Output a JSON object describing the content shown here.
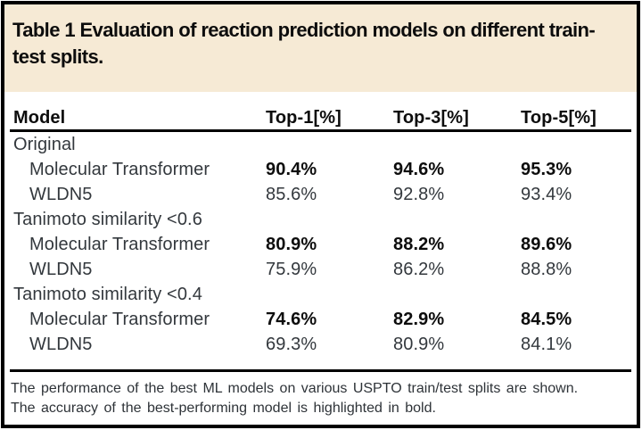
{
  "table": {
    "title": "Table 1 Evaluation of reaction prediction models on different train-test splits.",
    "columns": [
      "Model",
      "Top-1[%]",
      "Top-3[%]",
      "Top-5[%]"
    ],
    "sections": [
      {
        "label": "Original",
        "rows": [
          {
            "model": "Molecular Transformer",
            "top1": "90.4%",
            "top3": "94.6%",
            "top5": "95.3%",
            "bold": true
          },
          {
            "model": "WLDN5",
            "top1": "85.6%",
            "top3": "92.8%",
            "top5": "93.4%",
            "bold": false
          }
        ]
      },
      {
        "label": "Tanimoto similarity <0.6",
        "rows": [
          {
            "model": "Molecular Transformer",
            "top1": "80.9%",
            "top3": "88.2%",
            "top5": "89.6%",
            "bold": true
          },
          {
            "model": "WLDN5",
            "top1": "75.9%",
            "top3": "86.2%",
            "top5": "88.8%",
            "bold": false
          }
        ]
      },
      {
        "label": "Tanimoto similarity <0.4",
        "rows": [
          {
            "model": "Molecular Transformer",
            "top1": "74.6%",
            "top3": "82.9%",
            "top5": "84.5%",
            "bold": true
          },
          {
            "model": "WLDN5",
            "top1": "69.3%",
            "top3": "80.9%",
            "top5": "84.1%",
            "bold": false
          }
        ]
      }
    ],
    "footnotes": [
      "The performance of the best ML models on various USPTO train/test splits are shown.",
      "The accuracy of the best-performing model is highlighted in bold."
    ]
  },
  "colors": {
    "title_band": "#f6ead5",
    "border": "#000000",
    "bold_text": "#0d0d0d",
    "body_text": "#33383d"
  }
}
